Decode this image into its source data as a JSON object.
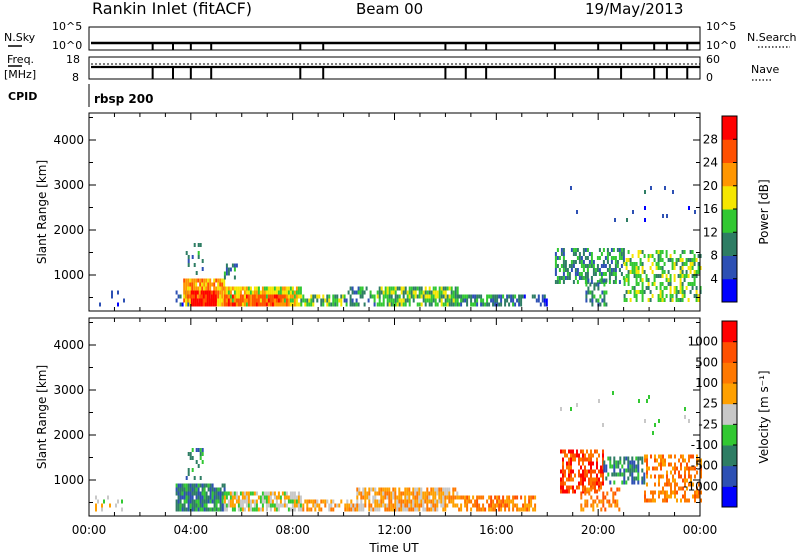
{
  "header": {
    "title": "Rankin Inlet (fitACF)",
    "beam": "Beam 00",
    "date": "19/May/2013"
  },
  "top_panel": {
    "nsky_label": "N.Sky",
    "nsky_ticks": [
      "10^5",
      "10^0"
    ],
    "nsearch_label": "N.Search",
    "nsearch_ticks": [
      "10^5",
      "10^0"
    ],
    "freq_label": "Freq.",
    "freq_unit": "[MHz]",
    "freq_ticks": [
      "18",
      "8"
    ],
    "nave_label": "Nave",
    "nave_ticks": [
      "60",
      "0"
    ],
    "cpid_label": "CPID",
    "cpid_name": "rbsp 200",
    "event_markers_hour": [
      2.5,
      3.3,
      4.0,
      4.8,
      8.3,
      9.2,
      14.0,
      14.8,
      15.6,
      18.3,
      20.0,
      20.9,
      22.2,
      22.7,
      23.5
    ]
  },
  "chart_data": [
    {
      "type": "heatmap",
      "panel": "power",
      "xlabel": "",
      "ylabel": "Slant Range [km]",
      "xlim": [
        0,
        24
      ],
      "ylim": [
        200,
        4600
      ],
      "yticks": [
        1000,
        2000,
        3000,
        4000
      ],
      "colorbar": {
        "label": "Power [dB]",
        "tick_labels": [
          "4",
          "8",
          "12",
          "16",
          "20",
          "24",
          "28"
        ],
        "range": [
          0,
          30
        ],
        "colors": [
          "#0000ff",
          "#2d50b4",
          "#2e7d64",
          "#32c832",
          "#f5e600",
          "#ff9600",
          "#ff5000",
          "#ff0000"
        ]
      },
      "scatter_regions": [
        {
          "t0": 0.0,
          "t1": 1.4,
          "r0": 300,
          "r1": 600,
          "density": 0.12,
          "level": 1
        },
        {
          "t0": 3.4,
          "t1": 3.9,
          "r0": 300,
          "r1": 600,
          "density": 0.5,
          "level": 1
        },
        {
          "t0": 3.7,
          "t1": 5.3,
          "r0": 300,
          "r1": 850,
          "density": 0.95,
          "level": 5
        },
        {
          "t0": 4.0,
          "t1": 5.0,
          "r0": 300,
          "r1": 600,
          "density": 0.95,
          "level": 7
        },
        {
          "t0": 5.3,
          "t1": 8.3,
          "r0": 300,
          "r1": 700,
          "density": 0.9,
          "level": 4
        },
        {
          "t0": 5.3,
          "t1": 7.8,
          "r0": 300,
          "r1": 500,
          "density": 0.9,
          "level": 6
        },
        {
          "t0": 3.8,
          "t1": 4.5,
          "r0": 1000,
          "r1": 1700,
          "density": 0.25,
          "level": 2
        },
        {
          "t0": 5.3,
          "t1": 5.8,
          "r0": 900,
          "r1": 1200,
          "density": 0.35,
          "level": 2
        },
        {
          "t0": 8.3,
          "t1": 10.0,
          "r0": 300,
          "r1": 500,
          "density": 0.75,
          "level": 3
        },
        {
          "t0": 10.0,
          "t1": 11.2,
          "r0": 300,
          "r1": 700,
          "density": 0.55,
          "level": 2
        },
        {
          "t0": 11.3,
          "t1": 14.5,
          "r0": 300,
          "r1": 700,
          "density": 0.8,
          "level": 3
        },
        {
          "t0": 14.5,
          "t1": 17.0,
          "r0": 300,
          "r1": 550,
          "density": 0.8,
          "level": 2
        },
        {
          "t0": 17.0,
          "t1": 18.0,
          "r0": 300,
          "r1": 500,
          "density": 0.4,
          "level": 1
        },
        {
          "t0": 18.3,
          "t1": 21.0,
          "r0": 800,
          "r1": 1600,
          "density": 0.55,
          "level": 2
        },
        {
          "t0": 21.0,
          "t1": 24.0,
          "r0": 400,
          "r1": 1500,
          "density": 0.5,
          "level": 3
        },
        {
          "t0": 19.5,
          "t1": 20.3,
          "r0": 300,
          "r1": 900,
          "density": 0.5,
          "level": 2
        },
        {
          "t0": 18.5,
          "t1": 23.8,
          "r0": 2000,
          "r1": 3000,
          "density": 0.02,
          "level": 1
        }
      ]
    },
    {
      "type": "heatmap",
      "panel": "velocity",
      "xlabel": "Time UT",
      "ylabel": "Slant Range [km]",
      "xlim": [
        0,
        24
      ],
      "ylim": [
        200,
        4600
      ],
      "xticks": [
        "00:00",
        "04:00",
        "08:00",
        "12:00",
        "16:00",
        "20:00",
        "00:00"
      ],
      "yticks": [
        1000,
        2000,
        3000,
        4000
      ],
      "colorbar": {
        "label": "Velocity [m s⁻¹]",
        "tick_labels": [
          "1000",
          "500",
          "100",
          "25",
          "-25",
          "-100",
          "-500",
          "-1000"
        ],
        "colors": [
          "#0000ff",
          "#2d50b4",
          "#2e7d64",
          "#32c832",
          "#c8c8c8",
          "#ffa000",
          "#ff7800",
          "#ff5000",
          "#ff0000"
        ]
      },
      "scatter_regions": [
        {
          "t0": 0.0,
          "t1": 1.4,
          "r0": 300,
          "r1": 600,
          "density": 0.1,
          "level": 4
        },
        {
          "t0": 3.4,
          "t1": 5.3,
          "r0": 300,
          "r1": 850,
          "density": 0.9,
          "level": 2
        },
        {
          "t0": 5.3,
          "t1": 8.3,
          "r0": 300,
          "r1": 700,
          "density": 0.8,
          "level": 4
        },
        {
          "t0": 3.8,
          "t1": 4.5,
          "r0": 1000,
          "r1": 1700,
          "density": 0.25,
          "level": 2
        },
        {
          "t0": 8.3,
          "t1": 10.5,
          "r0": 300,
          "r1": 500,
          "density": 0.6,
          "level": 5
        },
        {
          "t0": 10.5,
          "t1": 14.5,
          "r0": 300,
          "r1": 750,
          "density": 0.8,
          "level": 5
        },
        {
          "t0": 14.5,
          "t1": 17.5,
          "r0": 300,
          "r1": 600,
          "density": 0.75,
          "level": 6
        },
        {
          "t0": 18.5,
          "t1": 20.2,
          "r0": 700,
          "r1": 1600,
          "density": 0.6,
          "level": 7
        },
        {
          "t0": 20.2,
          "t1": 21.8,
          "r0": 900,
          "r1": 1500,
          "density": 0.5,
          "level": 2
        },
        {
          "t0": 21.8,
          "t1": 24.0,
          "r0": 500,
          "r1": 1500,
          "density": 0.45,
          "level": 6
        },
        {
          "t0": 19.3,
          "t1": 20.8,
          "r0": 300,
          "r1": 800,
          "density": 0.4,
          "level": 6
        },
        {
          "t0": 18.5,
          "t1": 23.8,
          "r0": 2000,
          "r1": 3000,
          "density": 0.02,
          "level": 3
        }
      ]
    }
  ]
}
